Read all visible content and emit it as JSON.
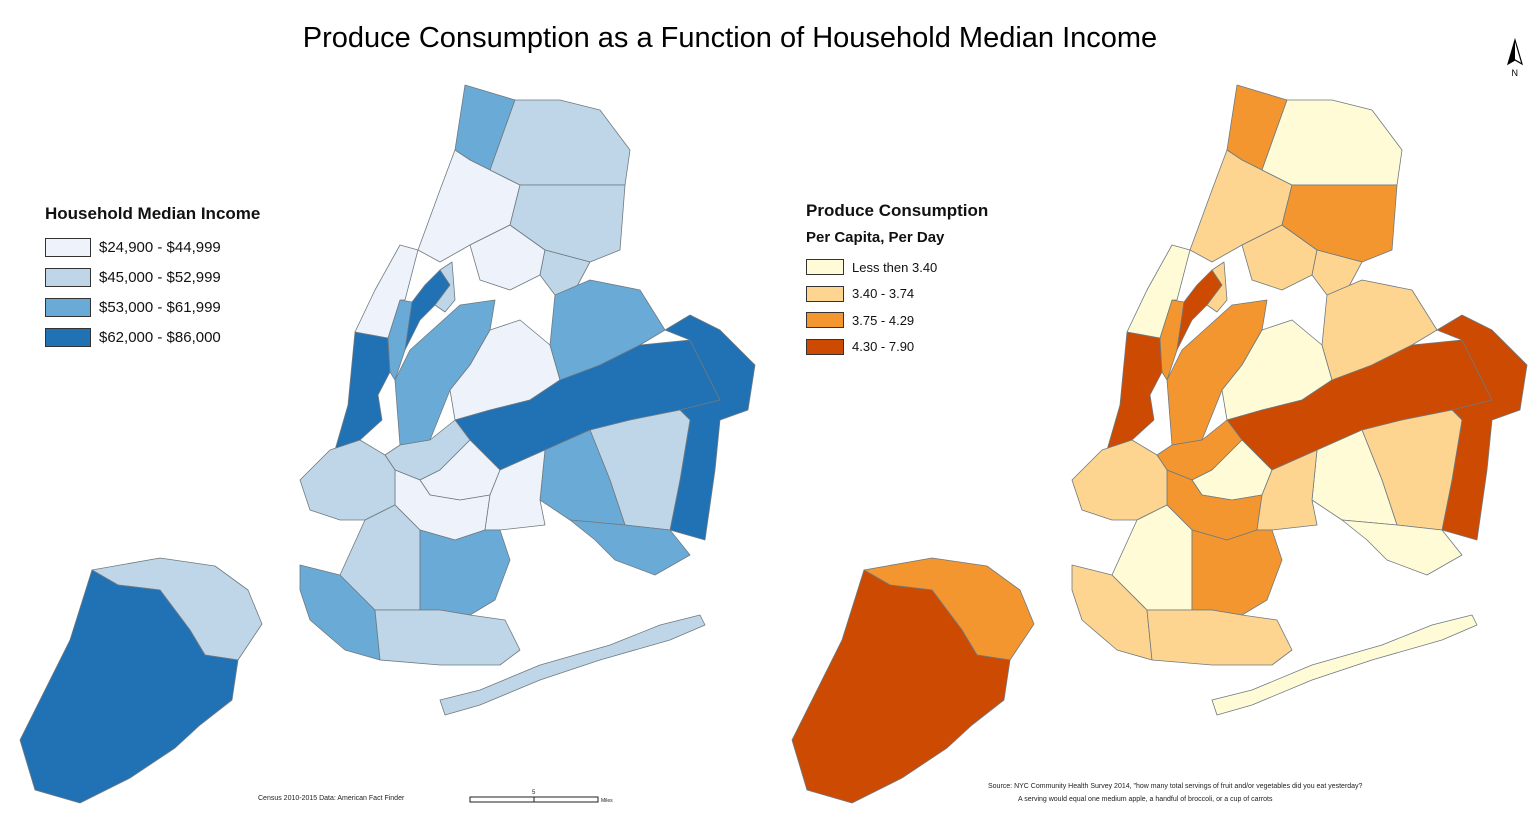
{
  "title": "Produce Consumption as a Function of Household Median Income",
  "income_legend": {
    "title": "Household Median Income",
    "classes": [
      {
        "label": "$24,900 - $44,999",
        "color": "#eef2fb"
      },
      {
        "label": "$45,000 - $52,999",
        "color": "#bed6e8"
      },
      {
        "label": "$53,000 - $61,999",
        "color": "#6aaad6"
      },
      {
        "label": "$62,000 - $86,000",
        "color": "#2171b5"
      }
    ]
  },
  "produce_legend": {
    "title": "Produce Consumption",
    "subtitle": "Per Capita, Per Day",
    "classes": [
      {
        "label": "Less then 3.40",
        "color": "#fefbd6"
      },
      {
        "label": "3.40 - 3.74",
        "color": "#fdd590"
      },
      {
        "label": "3.75 - 4.29",
        "color": "#f39630"
      },
      {
        "label": "4.30 - 7.90",
        "color": "#cc4a02"
      }
    ]
  },
  "left_source": "Census 2010-2015 Data: American Fact Finder",
  "scale_label": "5",
  "scale_unit": "Miles",
  "right_source_line1": "Source: NYC Community Health Survey 2014, \"how many total servings of fruit and/or vegetables did you eat yesterday?",
  "right_source_line2": "A serving would equal one medium apple, a handful of broccoli, or a cup of carrots",
  "north_label": "N",
  "regions": [
    {
      "key": "si_n",
      "income": 1,
      "produce": 2
    },
    {
      "key": "si_s",
      "income": 3,
      "produce": 3
    },
    {
      "key": "manh_w",
      "income": 3,
      "produce": 3
    },
    {
      "key": "manh_e",
      "income": 2,
      "produce": 2
    },
    {
      "key": "manh_n1",
      "income": 3,
      "produce": 3
    },
    {
      "key": "manh_n2",
      "income": 1,
      "produce": 1
    },
    {
      "key": "manh_nn",
      "income": 0,
      "produce": 0
    },
    {
      "key": "bx_nw",
      "income": 2,
      "produce": 2
    },
    {
      "key": "bx_w",
      "income": 0,
      "produce": 1
    },
    {
      "key": "bx_c",
      "income": 0,
      "produce": 1
    },
    {
      "key": "bx_ne",
      "income": 1,
      "produce": 0
    },
    {
      "key": "bx_e",
      "income": 1,
      "produce": 2
    },
    {
      "key": "bx_s",
      "income": 1,
      "produce": 1
    },
    {
      "key": "q_nw",
      "income": 2,
      "produce": 2
    },
    {
      "key": "q_c",
      "income": 0,
      "produce": 0
    },
    {
      "key": "q_n",
      "income": 2,
      "produce": 1
    },
    {
      "key": "q_band",
      "income": 3,
      "produce": 3
    },
    {
      "key": "q_e",
      "income": 3,
      "produce": 3
    },
    {
      "key": "q_se",
      "income": 1,
      "produce": 1
    },
    {
      "key": "q_s",
      "income": 2,
      "produce": 0
    },
    {
      "key": "q_sw",
      "income": 2,
      "produce": 0
    },
    {
      "key": "bk_nw",
      "income": 1,
      "produce": 2
    },
    {
      "key": "bk_n",
      "income": 0,
      "produce": 0
    },
    {
      "key": "bk_c",
      "income": 0,
      "produce": 2
    },
    {
      "key": "bk_e",
      "income": 0,
      "produce": 1
    },
    {
      "key": "bk_w",
      "income": 1,
      "produce": 1
    },
    {
      "key": "bk_sw",
      "income": 2,
      "produce": 1
    },
    {
      "key": "bk_s",
      "income": 1,
      "produce": 0
    },
    {
      "key": "bk_se",
      "income": 2,
      "produce": 2
    },
    {
      "key": "bk_sc",
      "income": 1,
      "produce": 1
    },
    {
      "key": "rock",
      "income": 1,
      "produce": 0
    }
  ]
}
